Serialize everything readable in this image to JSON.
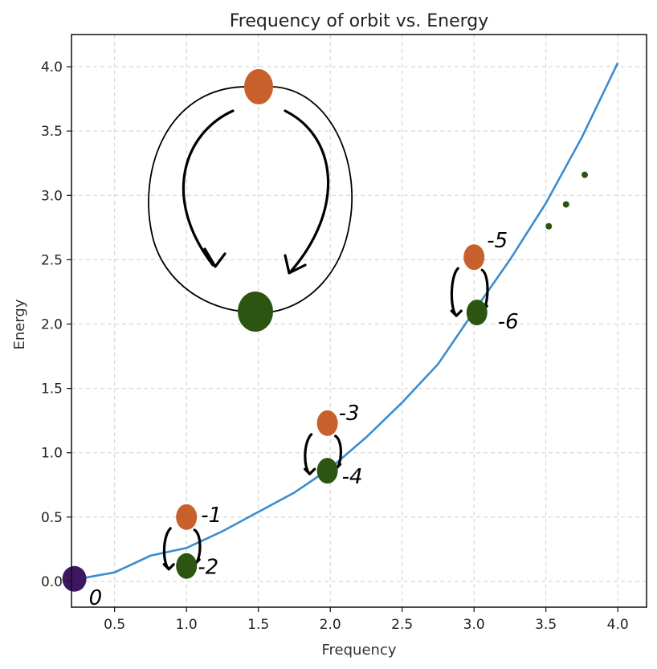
{
  "chart_data": {
    "type": "line",
    "title": "Frequency of orbit vs. Energy",
    "xlabel": "Frequency",
    "ylabel": "Energy",
    "xlim": [
      0.2,
      4.2
    ],
    "ylim": [
      -0.2,
      4.25
    ],
    "xticks": [
      "0.5",
      "1.0",
      "1.5",
      "2.0",
      "2.5",
      "3.0",
      "3.5",
      "4.0"
    ],
    "yticks": [
      "0.0",
      "0.5",
      "1.0",
      "1.5",
      "2.0",
      "2.5",
      "3.0",
      "3.5",
      "4.0"
    ],
    "grid": true,
    "series": [
      {
        "values_x": [
          0.25,
          0.5,
          0.75,
          1.0,
          1.25,
          1.5,
          1.75,
          2.0,
          2.25,
          2.5,
          2.75,
          3.0,
          3.25,
          3.5,
          3.75,
          4.0
        ],
        "values_y": [
          0.02,
          0.07,
          0.2,
          0.26,
          0.39,
          0.54,
          0.69,
          0.88,
          1.12,
          1.39,
          1.69,
          2.1,
          2.5,
          2.94,
          3.45,
          4.03
        ],
        "color": "#3b8ccf"
      }
    ],
    "markers": [
      {
        "x": 0.22,
        "y": 0.02,
        "color": "#3d1760",
        "label": "0"
      },
      {
        "x": 1.0,
        "y": 0.5,
        "color": "#c8602c",
        "label": "-1"
      },
      {
        "x": 1.0,
        "y": 0.12,
        "color": "#2b5510",
        "label": "-2"
      },
      {
        "x": 1.98,
        "y": 1.23,
        "color": "#c8602c",
        "label": "-3"
      },
      {
        "x": 1.98,
        "y": 0.86,
        "color": "#2b5510",
        "label": "-4"
      },
      {
        "x": 3.0,
        "y": 2.52,
        "color": "#c8602c",
        "label": "-5"
      },
      {
        "x": 3.02,
        "y": 2.09,
        "color": "#2b5510",
        "label": "-6"
      },
      {
        "x": 3.52,
        "y": 2.76,
        "color": "#2b5510",
        "label": ""
      },
      {
        "x": 3.64,
        "y": 2.93,
        "color": "#2b5510",
        "label": ""
      },
      {
        "x": 3.77,
        "y": 3.16,
        "color": "#2b5510",
        "label": ""
      }
    ],
    "inset": {
      "top_dot_color": "#c8602c",
      "bottom_dot_color": "#2b5510"
    }
  }
}
